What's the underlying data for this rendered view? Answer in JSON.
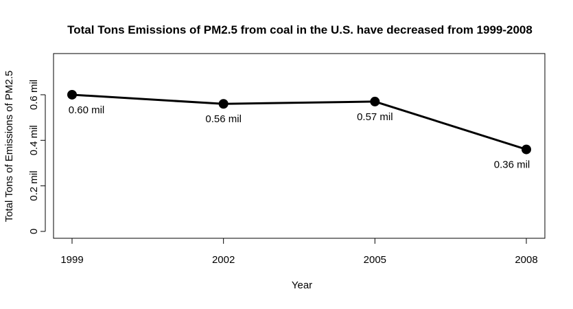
{
  "chart_data": {
    "type": "line",
    "title": "Total Tons Emissions of PM2.5 from coal in the U.S. have decreased from 1999-2008",
    "xlabel": "Year",
    "ylabel": "Total Tons of Emissions of PM2.5",
    "categories": [
      "1999",
      "2002",
      "2005",
      "2008"
    ],
    "values": [
      0.6,
      0.56,
      0.57,
      0.36
    ],
    "data_labels": [
      "0.60 mil",
      "0.56 mil",
      "0.57 mil",
      "0.36 mil"
    ],
    "y_ticks": [
      {
        "value": 0,
        "label": "0"
      },
      {
        "value": 0.2,
        "label": "0.2 mil"
      },
      {
        "value": 0.4,
        "label": "0.4 mil"
      },
      {
        "value": 0.6,
        "label": "0.6 mil"
      }
    ],
    "ylim": [
      0,
      0.75
    ],
    "grid": false,
    "line_color": "#000000",
    "marker": "filled-circle"
  }
}
